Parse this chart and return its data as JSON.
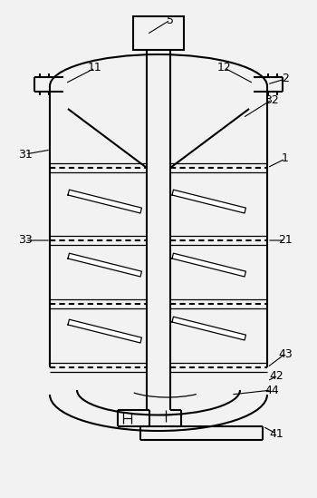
{
  "bg_color": "#f2f2f2",
  "line_color": "#000000",
  "lw": 1.5,
  "lw_thin": 0.9,
  "fig_w": 3.5,
  "fig_h": 5.49
}
